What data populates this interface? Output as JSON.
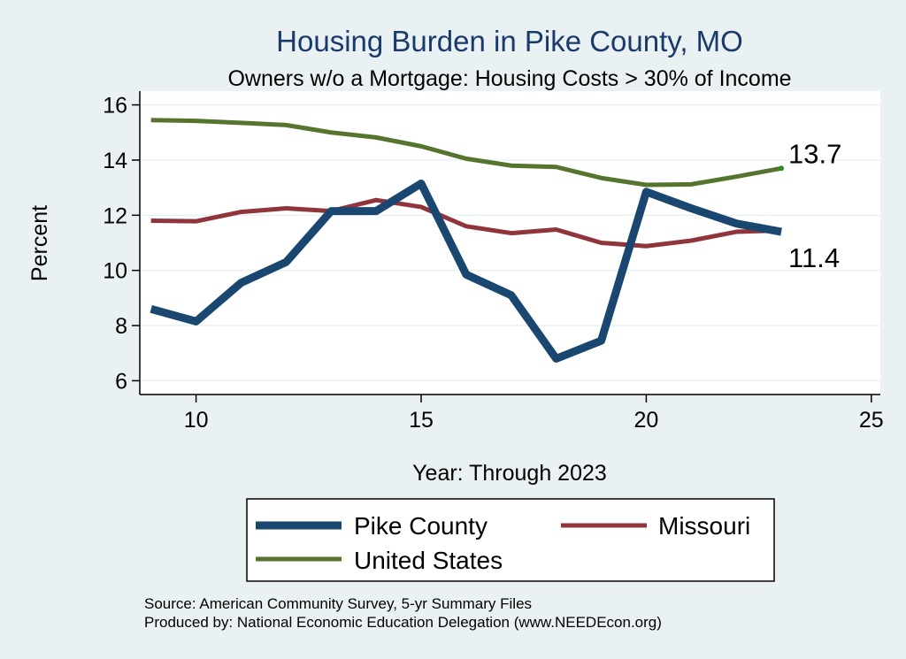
{
  "colors": {
    "background": "#eaf1f3",
    "plot_background": "#ffffff",
    "grid": "#eaf1f3",
    "pike": "#1a476f",
    "missouri": "#90353b",
    "us": "#55752f",
    "title": "#1a3a6b"
  },
  "chart_data": {
    "type": "line",
    "title": "Housing Burden in Pike County, MO",
    "subtitle": "Owners w/o a Mortgage: Housing Costs > 30% of Income",
    "xlabel": "Year: Through 2023",
    "ylabel": "Percent",
    "xlim": [
      8.75,
      25.2
    ],
    "ylim": [
      5.5,
      16.5
    ],
    "xticks": [
      10,
      15,
      20,
      25
    ],
    "yticks": [
      6,
      8,
      10,
      12,
      14,
      16
    ],
    "grid": true,
    "x": [
      9,
      10,
      11,
      12,
      13,
      14,
      15,
      16,
      17,
      18,
      19,
      20,
      21,
      22,
      23
    ],
    "series": [
      {
        "key": "pike",
        "name": "Pike County",
        "values": [
          8.6,
          8.15,
          9.55,
          10.3,
          12.15,
          12.15,
          13.15,
          9.85,
          9.1,
          6.8,
          7.45,
          12.85,
          12.25,
          11.7,
          11.4
        ]
      },
      {
        "key": "missouri",
        "name": "Missouri",
        "values": [
          11.8,
          11.78,
          12.12,
          12.25,
          12.15,
          12.55,
          12.3,
          11.6,
          11.35,
          11.48,
          11.0,
          10.88,
          11.08,
          11.4,
          11.45
        ]
      },
      {
        "key": "us",
        "name": "United States",
        "values": [
          15.45,
          15.42,
          15.35,
          15.27,
          15.0,
          14.82,
          14.5,
          14.05,
          13.8,
          13.75,
          13.35,
          13.1,
          13.12,
          13.4,
          13.7
        ]
      }
    ],
    "end_labels": {
      "us": "13.7",
      "pike": "11.4"
    },
    "legend_position": "bottom"
  },
  "source": {
    "line1": "Source: American Community Survey, 5-yr Summary Files",
    "line2": "Produced by: National Economic Education Delegation (www.NEEDEcon.org)"
  }
}
